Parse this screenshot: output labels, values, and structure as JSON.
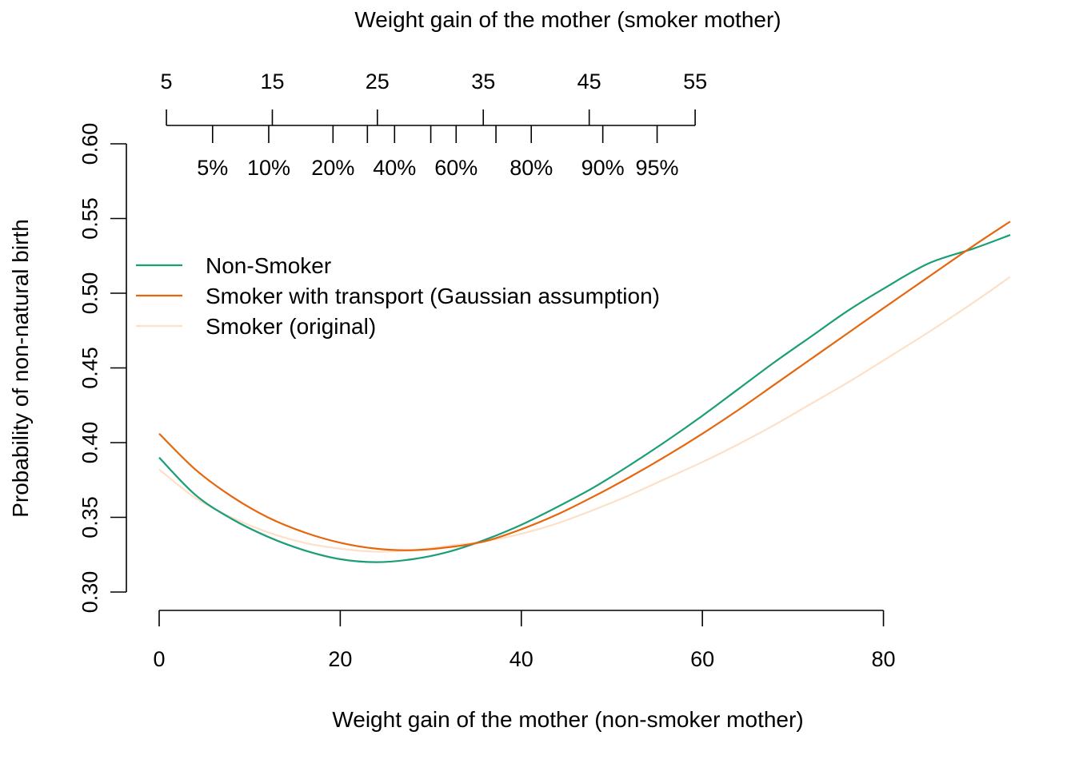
{
  "chart_data": {
    "type": "line",
    "xlabel": "Weight gain of the mother (non-smoker mother)",
    "ylabel": "Probability of non-natural birth",
    "top_axis_title": "Weight gain of the mother (smoker mother)",
    "xlim": [
      0,
      94
    ],
    "ylim": [
      0.3,
      0.6
    ],
    "x_ticks": [
      0,
      20,
      40,
      60,
      80
    ],
    "x_tick_labels": [
      "0",
      "20",
      "40",
      "60",
      "80"
    ],
    "y_ticks": [
      0.3,
      0.35,
      0.4,
      0.45,
      0.5,
      0.55,
      0.6
    ],
    "y_tick_labels": [
      "0.30",
      "0.35",
      "0.40",
      "0.45",
      "0.50",
      "0.55",
      "0.60"
    ],
    "top_axis": {
      "ticks_nonsmoker_units": [
        0.8,
        12.5,
        24.1,
        35.8,
        47.5,
        59.2
      ],
      "tick_labels": [
        "5",
        "15",
        "25",
        "35",
        "45",
        "55"
      ],
      "quantile_ticks_nonsmoker_units": [
        5.9,
        12.1,
        19.2,
        23.0,
        26.0,
        30.0,
        32.8,
        37.2,
        41.1,
        49.0,
        55.0
      ],
      "quantile_labels": [
        {
          "text": "5%",
          "at": 5.9
        },
        {
          "text": "10%",
          "at": 12.1
        },
        {
          "text": "20%",
          "at": 19.2
        },
        {
          "text": "40%",
          "at": 26.0
        },
        {
          "text": "60%",
          "at": 32.8
        },
        {
          "text": "80%",
          "at": 41.1
        },
        {
          "text": "90%",
          "at": 49.0
        },
        {
          "text": "95%",
          "at": 55.0
        }
      ]
    },
    "grid": false,
    "legend_position": "top-left",
    "series": [
      {
        "name": "Non-Smoker",
        "color": "#1b9e77",
        "x": [
          0,
          4,
          8,
          12,
          16,
          20,
          24,
          28,
          32,
          36,
          40,
          44,
          48,
          52,
          56,
          60,
          64,
          68,
          72,
          76,
          80,
          85,
          90,
          94
        ],
        "y": [
          0.39,
          0.365,
          0.349,
          0.337,
          0.328,
          0.322,
          0.32,
          0.322,
          0.327,
          0.335,
          0.345,
          0.357,
          0.37,
          0.385,
          0.401,
          0.418,
          0.436,
          0.454,
          0.471,
          0.488,
          0.503,
          0.52,
          0.53,
          0.539
        ]
      },
      {
        "name": "Smoker with transport (Gaussian assumption)",
        "color": "#e6660e",
        "x": [
          0,
          4,
          8,
          12,
          16,
          20,
          24,
          28,
          32,
          36,
          40,
          44,
          48,
          52,
          56,
          60,
          64,
          68,
          72,
          76,
          80,
          85,
          90,
          94
        ],
        "y": [
          0.406,
          0.382,
          0.364,
          0.35,
          0.34,
          0.333,
          0.329,
          0.328,
          0.33,
          0.334,
          0.342,
          0.352,
          0.364,
          0.377,
          0.391,
          0.406,
          0.422,
          0.439,
          0.456,
          0.473,
          0.49,
          0.511,
          0.532,
          0.548
        ]
      },
      {
        "name": "Smoker (original)",
        "color": "#fde0c8",
        "x": [
          0,
          4,
          8,
          12,
          16,
          20,
          24,
          28,
          32,
          36,
          40,
          44,
          48,
          52,
          56,
          60,
          64,
          68,
          72,
          76,
          80,
          85,
          90,
          94
        ],
        "y": [
          0.382,
          0.363,
          0.35,
          0.34,
          0.333,
          0.329,
          0.327,
          0.328,
          0.331,
          0.334,
          0.339,
          0.346,
          0.355,
          0.365,
          0.376,
          0.387,
          0.399,
          0.412,
          0.426,
          0.44,
          0.455,
          0.474,
          0.494,
          0.511
        ]
      }
    ]
  }
}
